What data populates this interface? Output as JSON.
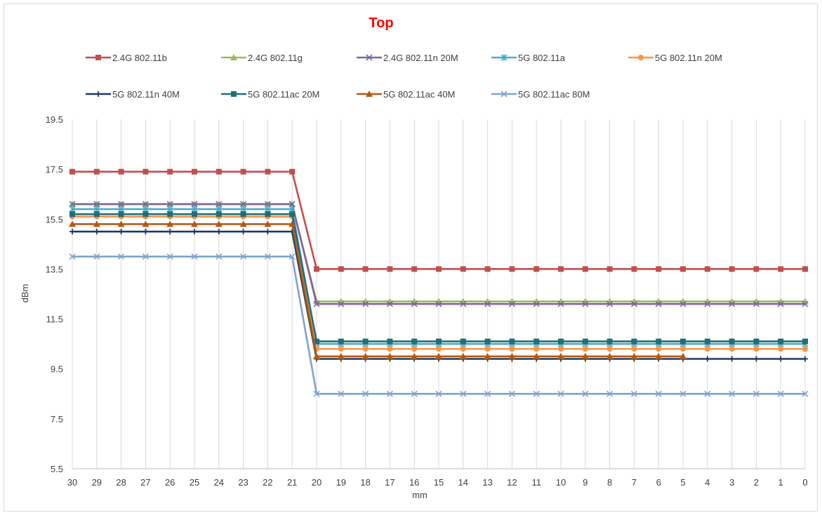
{
  "chart_data": {
    "type": "line",
    "title": "Top",
    "xlabel": "mm",
    "ylabel": "dBm",
    "x": [
      30,
      29,
      28,
      27,
      26,
      25,
      24,
      23,
      22,
      21,
      20,
      19,
      18,
      17,
      16,
      15,
      14,
      13,
      12,
      11,
      10,
      9,
      8,
      7,
      6,
      5,
      4,
      3,
      2,
      1,
      0
    ],
    "x_ticks": [
      "30",
      "29",
      "28",
      "27",
      "26",
      "25",
      "24",
      "23",
      "22",
      "21",
      "20",
      "19",
      "18",
      "17",
      "16",
      "15",
      "14",
      "13",
      "12",
      "11",
      "10",
      "9",
      "8",
      "7",
      "6",
      "5",
      "4",
      "3",
      "2",
      "1",
      "0"
    ],
    "x_reversed": true,
    "ylim": [
      5.5,
      19.5
    ],
    "y_ticks": [
      "5.5",
      "7.5",
      "9.5",
      "11.5",
      "13.5",
      "15.5",
      "17.5",
      "19.5"
    ],
    "grid": "vertical",
    "legend_position": "top",
    "series": [
      {
        "name": "2.4G 802.11b",
        "color": "#c0504d",
        "marker": "square",
        "high": 17.4,
        "low": 13.5,
        "values": [
          17.4,
          17.4,
          17.4,
          17.4,
          17.4,
          17.4,
          17.4,
          17.4,
          17.4,
          17.4,
          13.5,
          13.5,
          13.5,
          13.5,
          13.5,
          13.5,
          13.5,
          13.5,
          13.5,
          13.5,
          13.5,
          13.5,
          13.5,
          13.5,
          13.5,
          13.5,
          13.5,
          13.5,
          13.5,
          13.5,
          13.5
        ]
      },
      {
        "name": "2.4G 802.11g",
        "color": "#9bbb59",
        "marker": "triangle",
        "high": 16.1,
        "low": 12.2,
        "values": [
          16.1,
          16.1,
          16.1,
          16.1,
          16.1,
          16.1,
          16.1,
          16.1,
          16.1,
          16.1,
          12.2,
          12.2,
          12.2,
          12.2,
          12.2,
          12.2,
          12.2,
          12.2,
          12.2,
          12.2,
          12.2,
          12.2,
          12.2,
          12.2,
          12.2,
          12.2,
          12.2,
          12.2,
          12.2,
          12.2,
          12.2
        ]
      },
      {
        "name": "2.4G 802.11n 20M",
        "color": "#8064a2",
        "marker": "x",
        "high": 16.1,
        "low": 12.1,
        "values": [
          16.1,
          16.1,
          16.1,
          16.1,
          16.1,
          16.1,
          16.1,
          16.1,
          16.1,
          16.1,
          12.1,
          12.1,
          12.1,
          12.1,
          12.1,
          12.1,
          12.1,
          12.1,
          12.1,
          12.1,
          12.1,
          12.1,
          12.1,
          12.1,
          12.1,
          12.1,
          12.1,
          12.1,
          12.1,
          12.1,
          12.1
        ]
      },
      {
        "name": "5G 802.11a",
        "color": "#4bacc6",
        "marker": "star",
        "high": 15.9,
        "low": 10.5,
        "values": [
          15.9,
          15.9,
          15.9,
          15.9,
          15.9,
          15.9,
          15.9,
          15.9,
          15.9,
          15.9,
          10.5,
          10.5,
          10.5,
          10.5,
          10.5,
          10.5,
          10.5,
          10.5,
          10.5,
          10.5,
          10.5,
          10.5,
          10.5,
          10.5,
          10.5,
          10.5,
          10.5,
          10.5,
          10.5,
          10.5,
          10.5
        ]
      },
      {
        "name": "5G 802.11n 20M",
        "color": "#f79646",
        "marker": "circle",
        "high": 15.6,
        "low": 10.3,
        "values": [
          15.6,
          15.6,
          15.6,
          15.6,
          15.6,
          15.6,
          15.6,
          15.6,
          15.6,
          15.6,
          10.3,
          10.3,
          10.3,
          10.3,
          10.3,
          10.3,
          10.3,
          10.3,
          10.3,
          10.3,
          10.3,
          10.3,
          10.3,
          10.3,
          10.3,
          10.3,
          10.3,
          10.3,
          10.3,
          10.3,
          10.3
        ]
      },
      {
        "name": "5G 802.11n 40M",
        "color": "#1f3864",
        "marker": "plus",
        "high": 15.0,
        "low": 9.9,
        "values": [
          15.0,
          15.0,
          15.0,
          15.0,
          15.0,
          15.0,
          15.0,
          15.0,
          15.0,
          15.0,
          9.9,
          9.9,
          9.9,
          9.9,
          9.9,
          9.9,
          9.9,
          9.9,
          9.9,
          9.9,
          9.9,
          9.9,
          9.9,
          9.9,
          9.9,
          9.9,
          9.9,
          9.9,
          9.9,
          9.9,
          9.9
        ]
      },
      {
        "name": "5G 802.11ac 20M",
        "color": "#1f6f7a",
        "marker": "square",
        "high": 15.7,
        "low": 10.6,
        "values": [
          15.7,
          15.7,
          15.7,
          15.7,
          15.7,
          15.7,
          15.7,
          15.7,
          15.7,
          15.7,
          10.6,
          10.6,
          10.6,
          10.6,
          10.6,
          10.6,
          10.6,
          10.6,
          10.6,
          10.6,
          10.6,
          10.6,
          10.6,
          10.6,
          10.6,
          10.6,
          10.6,
          10.6,
          10.6,
          10.6,
          10.6
        ]
      },
      {
        "name": "5G 802.11ac 40M",
        "color": "#b35a10",
        "marker": "triangle",
        "high": 15.3,
        "low": 10.0,
        "values": [
          15.3,
          15.3,
          15.3,
          15.3,
          15.3,
          15.3,
          15.3,
          15.3,
          15.3,
          15.3,
          10.0,
          10.0,
          10.0,
          10.0,
          10.0,
          10.0,
          10.0,
          10.0,
          10.0,
          10.0,
          10.0,
          10.0,
          10.0,
          10.0,
          10.0,
          10.0,
          null,
          null,
          null,
          null,
          null
        ]
      },
      {
        "name": "5G 802.11ac 80M",
        "color": "#7ea3d1",
        "marker": "x",
        "high": 14.0,
        "low": 8.5,
        "values": [
          14.0,
          14.0,
          14.0,
          14.0,
          14.0,
          14.0,
          14.0,
          14.0,
          14.0,
          14.0,
          8.5,
          8.5,
          8.5,
          8.5,
          8.5,
          8.5,
          8.5,
          8.5,
          8.5,
          8.5,
          8.5,
          8.5,
          8.5,
          8.5,
          8.5,
          8.5,
          8.5,
          8.5,
          8.5,
          8.5,
          8.5
        ]
      }
    ]
  }
}
